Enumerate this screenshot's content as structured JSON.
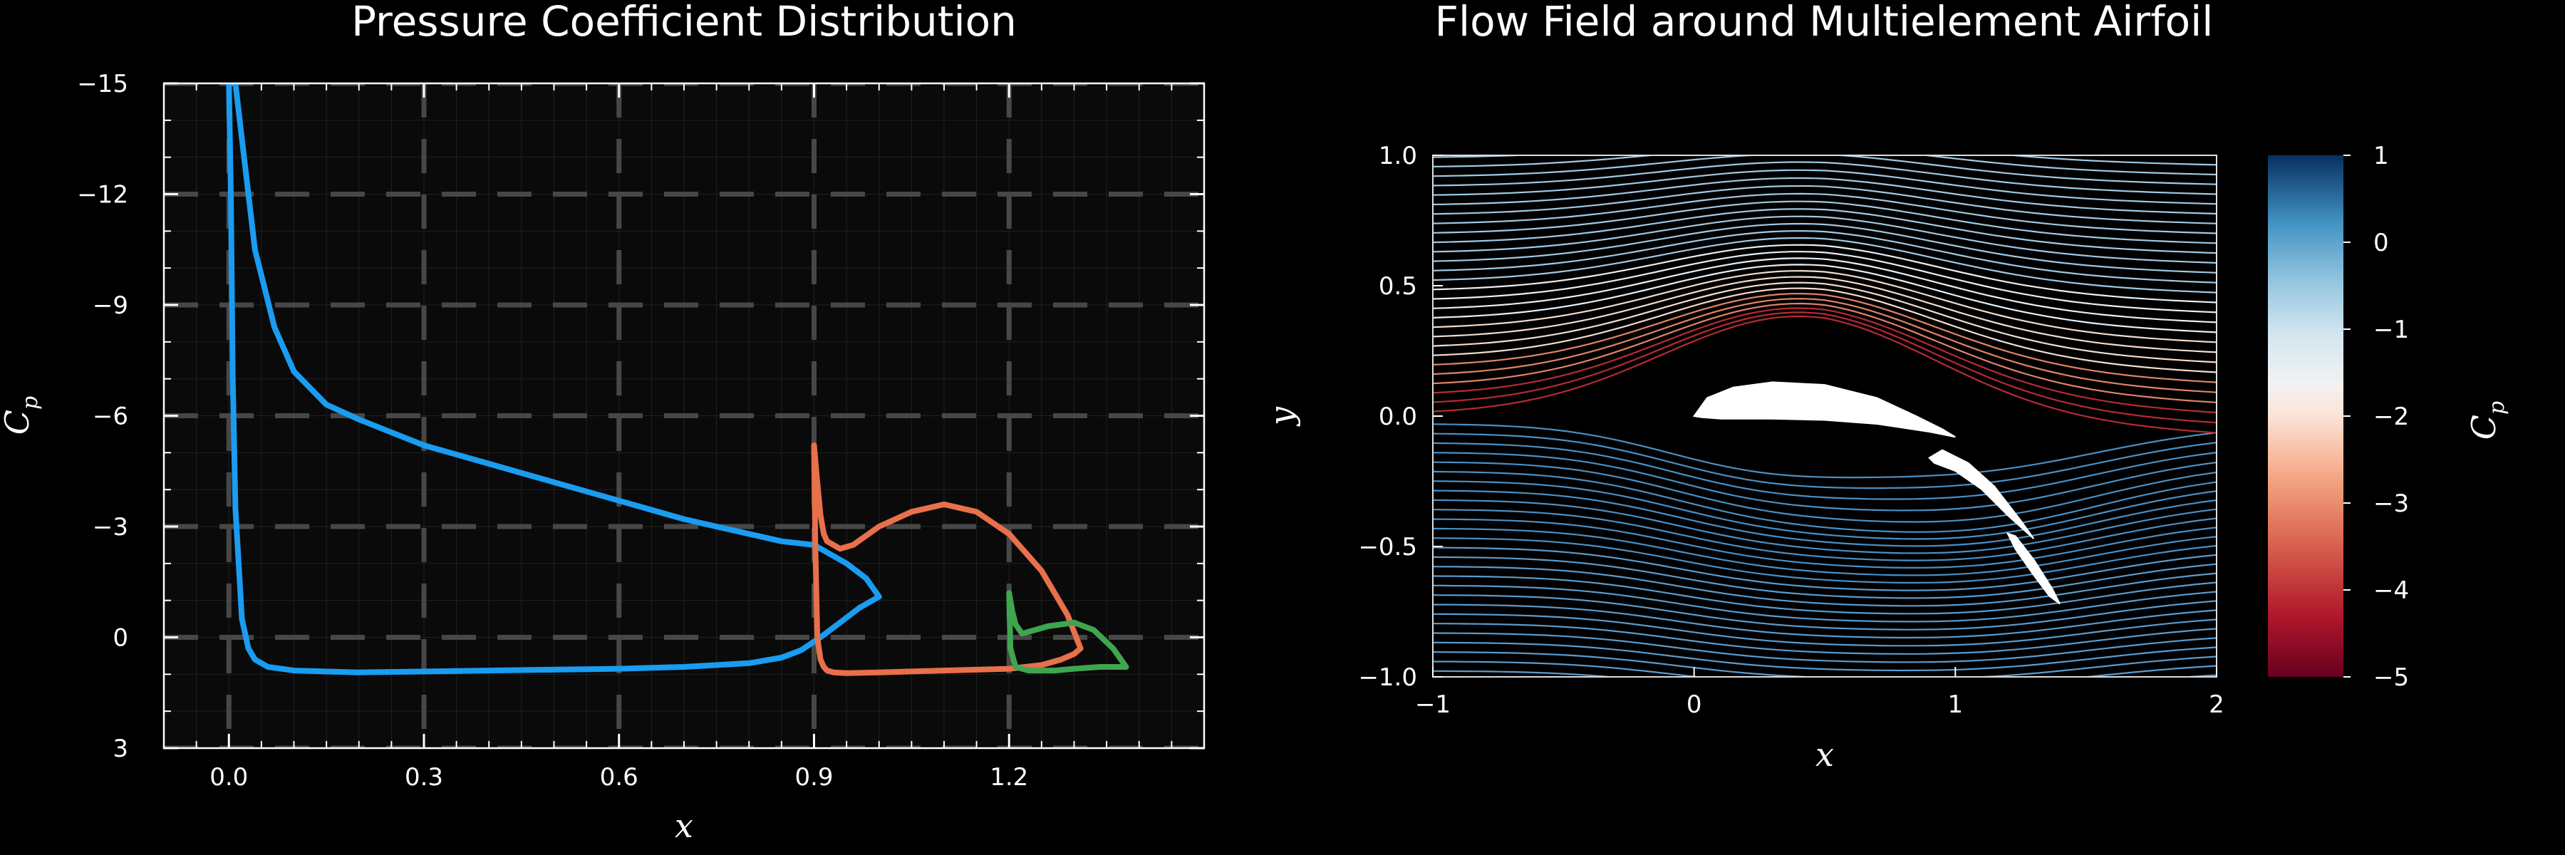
{
  "chart_data": [
    {
      "type": "line",
      "title": "Pressure Coefficient Distribution",
      "xlabel": "x",
      "ylabel": "C_p",
      "ylabel_main": "C",
      "ylabel_sub": "p",
      "xlim": [
        -0.1,
        1.5
      ],
      "ylim": [
        3,
        -15
      ],
      "y_inverted": true,
      "xticks": [
        0.0,
        0.3,
        0.6,
        0.9,
        1.2
      ],
      "xtick_labels": [
        "0.0",
        "0.3",
        "0.6",
        "0.9",
        "1.2"
      ],
      "yticks": [
        -15,
        -12,
        -9,
        -6,
        -3,
        0,
        3
      ],
      "ytick_labels": [
        "−15",
        "−12",
        "−9",
        "−6",
        "−3",
        "0",
        "3"
      ],
      "grid": true,
      "series": [
        {
          "color": "#1a9cf0",
          "upper": {
            "x": [
              0.0,
              0.005,
              0.01,
              0.02,
              0.04,
              0.07,
              0.1,
              0.15,
              0.2,
              0.3,
              0.4,
              0.5,
              0.6,
              0.7,
              0.8,
              0.85,
              0.9,
              0.95,
              0.98,
              1.0
            ],
            "y": [
              -15,
              -15,
              -15,
              -13.5,
              -10.5,
              -8.4,
              -7.2,
              -6.3,
              -5.9,
              -5.2,
              -4.7,
              -4.2,
              -3.7,
              -3.2,
              -2.8,
              -2.6,
              -2.5,
              -2.0,
              -1.6,
              -1.1
            ]
          },
          "lower": {
            "x": [
              0.0,
              0.003,
              0.006,
              0.01,
              0.02,
              0.03,
              0.04,
              0.06,
              0.1,
              0.2,
              0.4,
              0.6,
              0.7,
              0.8,
              0.85,
              0.88,
              0.91,
              0.94,
              0.97,
              1.0
            ],
            "y": [
              -15,
              -12,
              -7,
              -3.5,
              -0.5,
              0.3,
              0.6,
              0.8,
              0.9,
              0.95,
              0.9,
              0.85,
              0.8,
              0.7,
              0.55,
              0.35,
              0.0,
              -0.4,
              -0.8,
              -1.1
            ]
          }
        },
        {
          "color": "#e8704a",
          "upper": {
            "x": [
              0.9,
              0.905,
              0.91,
              0.915,
              0.92,
              0.93,
              0.94,
              0.96,
              1.0,
              1.05,
              1.1,
              1.15,
              1.2,
              1.25,
              1.29,
              1.31
            ],
            "y": [
              -5.2,
              -4.2,
              -3.3,
              -2.8,
              -2.6,
              -2.5,
              -2.4,
              -2.5,
              -3.0,
              -3.4,
              -3.6,
              -3.4,
              -2.8,
              -1.8,
              -0.6,
              0.3
            ]
          },
          "lower": {
            "x": [
              0.9,
              0.902,
              0.905,
              0.91,
              0.915,
              0.92,
              0.93,
              0.95,
              1.0,
              1.1,
              1.2,
              1.25,
              1.28,
              1.3,
              1.31
            ],
            "y": [
              -5.2,
              -2.5,
              0.0,
              0.6,
              0.8,
              0.9,
              0.95,
              0.97,
              0.95,
              0.9,
              0.85,
              0.75,
              0.6,
              0.45,
              0.3
            ]
          }
        },
        {
          "color": "#3fa54f",
          "upper": {
            "x": [
              1.2,
              1.205,
              1.21,
              1.22,
              1.24,
              1.26,
              1.28,
              1.3,
              1.33,
              1.36,
              1.38
            ],
            "y": [
              -1.2,
              -0.7,
              -0.35,
              -0.1,
              -0.2,
              -0.3,
              -0.35,
              -0.4,
              -0.2,
              0.3,
              0.8
            ]
          },
          "lower": {
            "x": [
              1.2,
              1.202,
              1.21,
              1.23,
              1.27,
              1.3,
              1.34,
              1.38
            ],
            "y": [
              -1.2,
              0.3,
              0.8,
              0.9,
              0.9,
              0.85,
              0.8,
              0.8
            ]
          }
        }
      ]
    },
    {
      "type": "streamplot",
      "title": "Flow Field around Multielement Airfoil",
      "xlabel": "x",
      "ylabel": "y",
      "xlim": [
        -1,
        2
      ],
      "ylim": [
        -1.0,
        1.0
      ],
      "xticks": [
        -1,
        0,
        1,
        2
      ],
      "xtick_labels": [
        "−1",
        "0",
        "1",
        "2"
      ],
      "yticks": [
        1.0,
        0.5,
        0.0,
        -0.5,
        -1.0
      ],
      "ytick_labels": [
        "1.0",
        "0.5",
        "0.0",
        "−0.5",
        "−1.0"
      ],
      "airfoils": [
        {
          "x": [
            0.0,
            0.05,
            0.15,
            0.3,
            0.5,
            0.7,
            0.85,
            0.95,
            1.0,
            0.9,
            0.7,
            0.5,
            0.3,
            0.1,
            0.03,
            0.0
          ],
          "y": [
            0.0,
            0.07,
            0.11,
            0.13,
            0.12,
            0.07,
            0.0,
            -0.05,
            -0.08,
            -0.06,
            -0.03,
            -0.015,
            -0.01,
            -0.01,
            -0.005,
            0.0
          ]
        },
        {
          "x": [
            0.9,
            0.95,
            1.05,
            1.15,
            1.25,
            1.3,
            1.2,
            1.1,
            1.0,
            0.92,
            0.9
          ],
          "y": [
            -0.16,
            -0.13,
            -0.18,
            -0.27,
            -0.4,
            -0.47,
            -0.38,
            -0.28,
            -0.21,
            -0.18,
            -0.16
          ]
        },
        {
          "x": [
            1.2,
            1.23,
            1.3,
            1.37,
            1.4,
            1.36,
            1.3,
            1.23,
            1.2
          ],
          "y": [
            -0.45,
            -0.46,
            -0.55,
            -0.66,
            -0.72,
            -0.69,
            -0.61,
            -0.51,
            -0.45
          ]
        }
      ],
      "colorbar": {
        "label": "C_p",
        "label_main": "C",
        "label_sub": "p",
        "range": [
          -5,
          1
        ],
        "ticks": [
          1,
          0,
          -1,
          -2,
          -3,
          -4,
          -5
        ],
        "tick_labels": [
          "1",
          "0",
          "−1",
          "−2",
          "−3",
          "−4",
          "−5"
        ],
        "colormap": "RdBu"
      }
    }
  ]
}
